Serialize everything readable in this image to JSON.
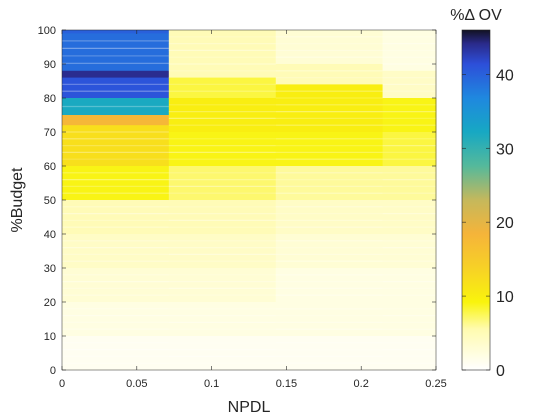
{
  "chart_data": {
    "type": "heatmap",
    "xlabel": "NPDL",
    "ylabel": "%Budget",
    "colorbar_title": "%Δ OV",
    "xlim": [
      0,
      0.25
    ],
    "ylim": [
      0,
      100
    ],
    "x_ticks": [
      0,
      0.05,
      0.1,
      0.15,
      0.2,
      0.25
    ],
    "x_tick_labels": [
      "0",
      "0.05",
      "0.1",
      "0.15",
      "0.2",
      "0.25"
    ],
    "y_ticks": [
      0,
      10,
      20,
      30,
      40,
      50,
      60,
      70,
      80,
      90,
      100
    ],
    "y_tick_labels": [
      "0",
      "10",
      "20",
      "30",
      "40",
      "50",
      "60",
      "70",
      "80",
      "90",
      "100"
    ],
    "colorbar_range": [
      0,
      46
    ],
    "colorbar_ticks": [
      0,
      10,
      20,
      30,
      40
    ],
    "colorbar_tick_labels": [
      "0",
      "10",
      "20",
      "30",
      "40"
    ],
    "colormap": "parula (reversed)",
    "grid": false,
    "columns": [
      {
        "x_start": 0.0,
        "x_end": 0.0714,
        "segments": [
          {
            "y0": 99,
            "y1": 100,
            "value": 40
          },
          {
            "y0": 88,
            "y1": 99,
            "value": 39
          },
          {
            "y0": 86,
            "y1": 88,
            "value": 44
          },
          {
            "y0": 80,
            "y1": 86,
            "value": 41
          },
          {
            "y0": 75,
            "y1": 80,
            "value": 32
          },
          {
            "y0": 72,
            "y1": 75,
            "value": 18
          },
          {
            "y0": 60,
            "y1": 72,
            "value": 12
          },
          {
            "y0": 50,
            "y1": 60,
            "value": 9
          },
          {
            "y0": 40,
            "y1": 50,
            "value": 5
          },
          {
            "y0": 30,
            "y1": 40,
            "value": 4
          },
          {
            "y0": 20,
            "y1": 30,
            "value": 3
          },
          {
            "y0": 10,
            "y1": 20,
            "value": 2
          },
          {
            "y0": 0,
            "y1": 10,
            "value": 1
          }
        ]
      },
      {
        "x_start": 0.0714,
        "x_end": 0.1429,
        "segments": [
          {
            "y0": 86,
            "y1": 100,
            "value": 5
          },
          {
            "y0": 80,
            "y1": 86,
            "value": 8
          },
          {
            "y0": 70,
            "y1": 80,
            "value": 10
          },
          {
            "y0": 60,
            "y1": 70,
            "value": 9
          },
          {
            "y0": 50,
            "y1": 60,
            "value": 7
          },
          {
            "y0": 40,
            "y1": 50,
            "value": 5
          },
          {
            "y0": 30,
            "y1": 40,
            "value": 4
          },
          {
            "y0": 20,
            "y1": 30,
            "value": 3
          },
          {
            "y0": 10,
            "y1": 20,
            "value": 2
          },
          {
            "y0": 0,
            "y1": 10,
            "value": 1
          }
        ]
      },
      {
        "x_start": 0.1429,
        "x_end": 0.2143,
        "segments": [
          {
            "y0": 90,
            "y1": 100,
            "value": 3
          },
          {
            "y0": 84,
            "y1": 90,
            "value": 5
          },
          {
            "y0": 70,
            "y1": 84,
            "value": 10
          },
          {
            "y0": 60,
            "y1": 70,
            "value": 9
          },
          {
            "y0": 50,
            "y1": 60,
            "value": 6
          },
          {
            "y0": 40,
            "y1": 50,
            "value": 4
          },
          {
            "y0": 30,
            "y1": 40,
            "value": 3
          },
          {
            "y0": 20,
            "y1": 30,
            "value": 2
          },
          {
            "y0": 10,
            "y1": 20,
            "value": 2
          },
          {
            "y0": 0,
            "y1": 10,
            "value": 1
          }
        ]
      },
      {
        "x_start": 0.2143,
        "x_end": 0.25,
        "segments": [
          {
            "y0": 88,
            "y1": 100,
            "value": 2
          },
          {
            "y0": 80,
            "y1": 88,
            "value": 4
          },
          {
            "y0": 70,
            "y1": 80,
            "value": 9
          },
          {
            "y0": 60,
            "y1": 70,
            "value": 8
          },
          {
            "y0": 50,
            "y1": 60,
            "value": 6
          },
          {
            "y0": 40,
            "y1": 50,
            "value": 4
          },
          {
            "y0": 30,
            "y1": 40,
            "value": 3
          },
          {
            "y0": 20,
            "y1": 30,
            "value": 2
          },
          {
            "y0": 10,
            "y1": 20,
            "value": 2
          },
          {
            "y0": 0,
            "y1": 10,
            "value": 1
          }
        ]
      }
    ]
  }
}
